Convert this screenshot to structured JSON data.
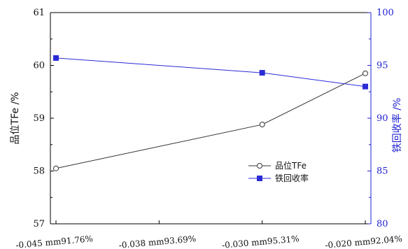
{
  "chart_data": {
    "type": "line",
    "categories": [
      "-0.045 mm91.76%",
      "-0.038 mm93.69%",
      "-0.030 mm95.31%",
      "-0.020 mm92.04%"
    ],
    "series": [
      {
        "name": "品位TFe",
        "axis": "left",
        "marker": "open-circle",
        "color": "#333333",
        "points": [
          {
            "category_index": 0,
            "value": 58.05
          },
          {
            "category_index": 2,
            "value": 58.88
          },
          {
            "category_index": 3,
            "value": 59.85
          }
        ]
      },
      {
        "name": "铁回收率",
        "axis": "right",
        "marker": "filled-square",
        "color": "#2b2bd6",
        "points": [
          {
            "category_index": 0,
            "value": 95.7
          },
          {
            "category_index": 2,
            "value": 94.3
          },
          {
            "category_index": 3,
            "value": 93.0
          }
        ]
      }
    ],
    "y_left": {
      "label": "品位TFe /%",
      "ylim": [
        57,
        61
      ],
      "ticks": [
        57,
        58,
        59,
        60,
        61
      ],
      "color": "#000000"
    },
    "y_right": {
      "label": "铁回收率 /%",
      "ylim": [
        80,
        100
      ],
      "ticks": [
        80,
        85,
        90,
        95,
        100
      ],
      "color": "#1f1fd1"
    },
    "grid": false,
    "legend_position": "center-right"
  }
}
